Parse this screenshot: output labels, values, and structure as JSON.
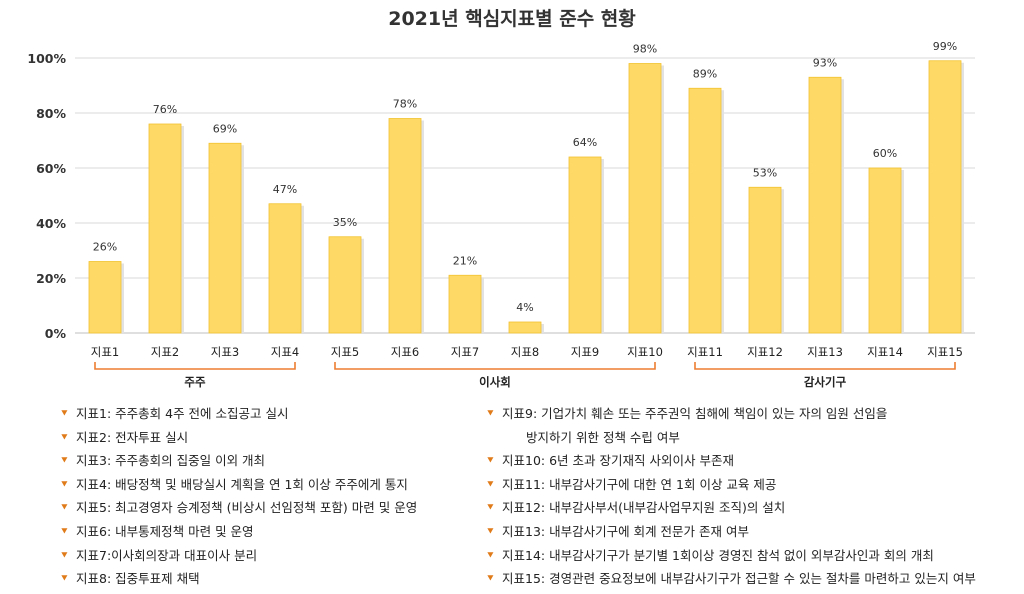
{
  "chart_data": {
    "type": "bar",
    "title": "2021년 핵심지표별 준수 현황",
    "xlabel": "",
    "ylabel": "",
    "ylim": [
      0,
      100
    ],
    "yticks": [
      "0%",
      "20%",
      "40%",
      "60%",
      "80%",
      "100%"
    ],
    "categories": [
      "지표1",
      "지표2",
      "지표3",
      "지표4",
      "지표5",
      "지표6",
      "지표7",
      "지표8",
      "지표9",
      "지표10",
      "지표11",
      "지표12",
      "지표13",
      "지표14",
      "지표15"
    ],
    "values": [
      26,
      76,
      69,
      47,
      35,
      78,
      21,
      4,
      64,
      98,
      89,
      53,
      93,
      60,
      99
    ],
    "value_labels": [
      "26%",
      "76%",
      "69%",
      "47%",
      "35%",
      "78%",
      "21%",
      "4%",
      "64%",
      "98%",
      "89%",
      "53%",
      "93%",
      "60%",
      "99%"
    ],
    "groups": [
      {
        "name": "주주",
        "from": 0,
        "to": 3
      },
      {
        "name": "이사회",
        "from": 4,
        "to": 9
      },
      {
        "name": "감사기구",
        "from": 10,
        "to": 14
      }
    ],
    "bar_color": "#FFD966",
    "bar_edge_color": "#F2C230",
    "bracket_color": "#ED7D31"
  },
  "legend": {
    "left": [
      {
        "text": "지표1: 주주총회 4주 전에 소집공고 실시"
      },
      {
        "text": "지표2: 전자투표 실시"
      },
      {
        "text": "지표3: 주주총회의 집중일 이외 개최"
      },
      {
        "text": "지표4: 배당정책 및 배당실시 계획을 연 1회 이상 주주에게 통지"
      },
      {
        "text": "지표5: 최고경영자 승계정책 (비상시 선임정책 포함) 마련 및 운영"
      },
      {
        "text": "지표6: 내부통제정책 마련 및 운영"
      },
      {
        "text": "지표7:이사회의장과 대표이사 분리"
      },
      {
        "text": "지표8: 집중투표제 채택"
      }
    ],
    "right": [
      {
        "text": "지표9: 기업가치 훼손 또는 주주권익 침해에 책임이 있는 자의 임원 선임을",
        "sub": "방지하기 위한 정책 수립 여부"
      },
      {
        "text": "지표10: 6년 초과 장기재직 사외이사 부존재"
      },
      {
        "text": "지표11: 내부감사기구에 대한 연 1회 이상 교육 제공"
      },
      {
        "text": "지표12: 내부감사부서(내부감사업무지원 조직)의 설치"
      },
      {
        "text": "지표13: 내부감사기구에 회계 전문가 존재 여부"
      },
      {
        "text": "지표14: 내부감사기구가 분기별 1회이상 경영진 참석 없이 외부감사인과 회의 개최"
      },
      {
        "text": "지표15: 경영관련 중요정보에 내부감사기구가 접근할 수 있는 절차를 마련하고 있는지 여부"
      }
    ],
    "arrow_glyph": "⯆",
    "arrow_color": "#E07B1A"
  }
}
